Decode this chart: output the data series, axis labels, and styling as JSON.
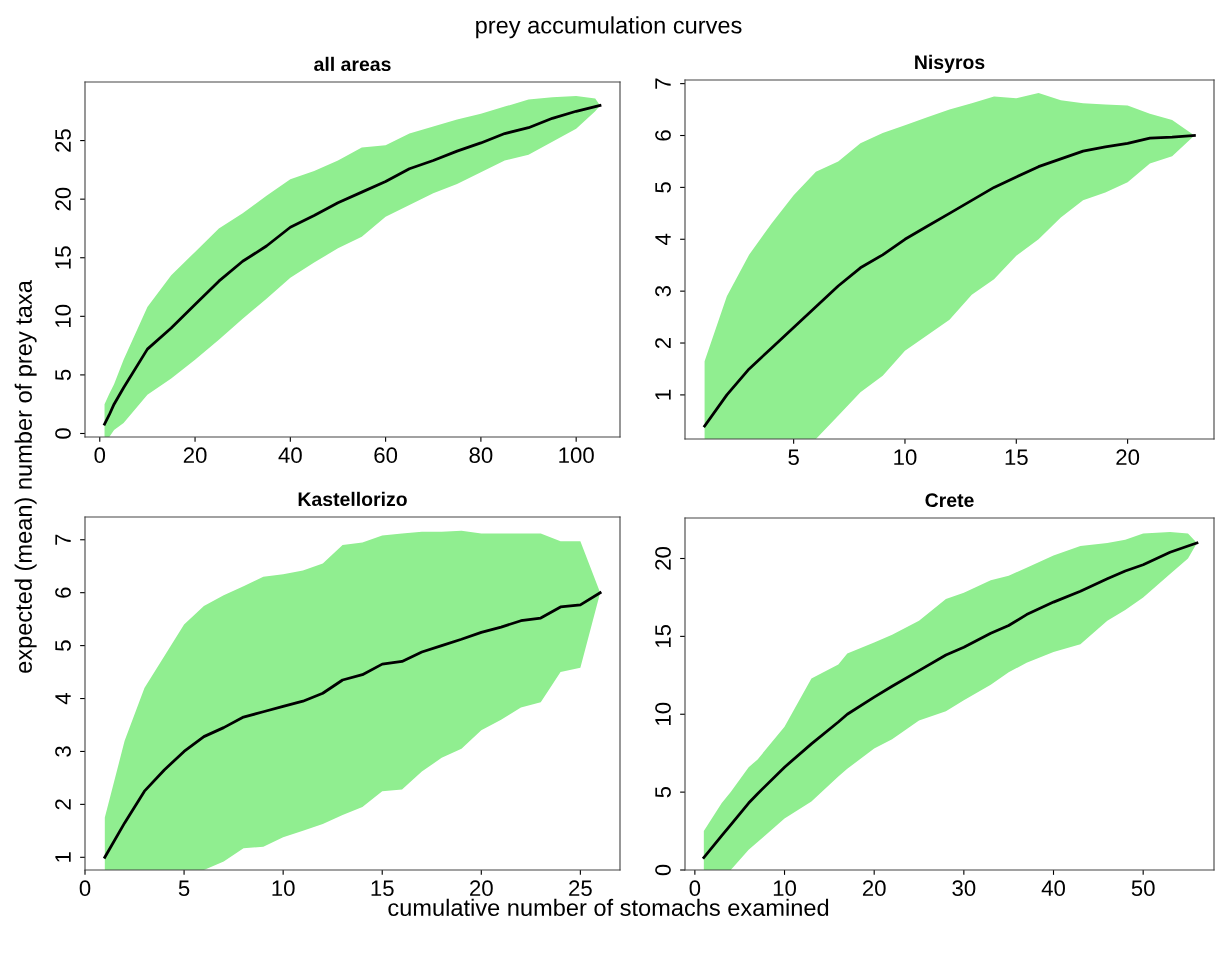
{
  "chart_data": [
    {
      "type": "line",
      "title": "all areas",
      "annotations": [
        "prey accumulation curves"
      ],
      "xlabel": "cumulative number of stomachs examined",
      "ylabel": "expected (mean) number of prey taxa",
      "xlim": [
        -3.1,
        109.2
      ],
      "ylim": [
        -0.3,
        30.0
      ],
      "xticks": [
        0,
        20,
        40,
        60,
        80,
        100
      ],
      "yticks": [
        0,
        5,
        10,
        15,
        20,
        25
      ],
      "grid": false,
      "legend": false,
      "series": [
        {
          "color": "#000000",
          "x": [
            1,
            2,
            3,
            5,
            10,
            15,
            20,
            25,
            30,
            35,
            40,
            45,
            50,
            55,
            60,
            65,
            70,
            75,
            80,
            85,
            90,
            95,
            100,
            104,
            105
          ],
          "values": [
            0.8,
            1.6,
            2.5,
            3.9,
            7.2,
            9.0,
            11.0,
            13.0,
            14.7,
            16.0,
            17.6,
            18.6,
            19.7,
            20.6,
            21.5,
            22.6,
            23.3,
            24.1,
            24.8,
            25.6,
            26.1,
            26.9,
            27.5,
            27.9,
            28.0
          ],
          "upper": [
            2.5,
            3.4,
            4.2,
            6.3,
            10.8,
            13.5,
            15.5,
            17.5,
            18.8,
            20.3,
            21.7,
            22.4,
            23.3,
            24.4,
            24.6,
            25.6,
            26.2,
            26.8,
            27.3,
            27.9,
            28.5,
            28.7,
            28.8,
            28.6,
            28.0
          ],
          "lower": [
            -0.3,
            -0.3,
            0.3,
            0.9,
            3.3,
            4.7,
            6.3,
            8.0,
            9.8,
            11.5,
            13.3,
            14.6,
            15.8,
            16.8,
            18.5,
            19.5,
            20.5,
            21.3,
            22.3,
            23.3,
            23.8,
            24.9,
            26.0,
            27.5,
            28.0
          ]
        }
      ]
    },
    {
      "type": "line",
      "title": "Nisyros",
      "xlim": [
        0.12,
        23.88
      ],
      "ylim": [
        0.15,
        7.07
      ],
      "xticks": [
        5,
        10,
        15,
        20
      ],
      "yticks": [
        1,
        2,
        3,
        4,
        5,
        6,
        7
      ],
      "grid": false,
      "legend": false,
      "series": [
        {
          "color": "#000000",
          "x": [
            1,
            2,
            3,
            4,
            5,
            6,
            7,
            8,
            9,
            10,
            11,
            12,
            13,
            14,
            15,
            16,
            17,
            18,
            19,
            20,
            21,
            22,
            23
          ],
          "values": [
            0.4,
            1.0,
            1.5,
            1.9,
            2.3,
            2.7,
            3.1,
            3.45,
            3.7,
            4.0,
            4.25,
            4.5,
            4.75,
            5.0,
            5.2,
            5.4,
            5.55,
            5.7,
            5.78,
            5.85,
            5.95,
            5.97,
            6.0
          ],
          "upper": [
            1.65,
            2.9,
            3.7,
            4.3,
            4.85,
            5.3,
            5.5,
            5.85,
            6.05,
            6.2,
            6.35,
            6.5,
            6.62,
            6.75,
            6.72,
            6.82,
            6.68,
            6.62,
            6.6,
            6.58,
            6.42,
            6.3,
            6.0
          ],
          "lower": [
            0.15,
            0.15,
            0.15,
            0.15,
            0.15,
            0.15,
            0.6,
            1.05,
            1.37,
            1.85,
            2.15,
            2.45,
            2.93,
            3.23,
            3.68,
            4.0,
            4.42,
            4.75,
            4.9,
            5.1,
            5.46,
            5.6,
            6.0
          ]
        }
      ]
    },
    {
      "type": "line",
      "title": "Kastellorizo",
      "xlim": [
        0,
        27
      ],
      "ylim": [
        0.76,
        7.43
      ],
      "xticks": [
        0,
        5,
        10,
        15,
        20,
        25
      ],
      "yticks": [
        1,
        2,
        3,
        4,
        5,
        6,
        7
      ],
      "grid": false,
      "legend": false,
      "series": [
        {
          "color": "#000000",
          "x": [
            1,
            2,
            3,
            4,
            5,
            6,
            7,
            8,
            9,
            10,
            11,
            12,
            13,
            14,
            15,
            16,
            17,
            18,
            19,
            20,
            21,
            22,
            23,
            24,
            25,
            26
          ],
          "values": [
            1.0,
            1.65,
            2.25,
            2.65,
            3.0,
            3.28,
            3.45,
            3.65,
            3.75,
            3.85,
            3.95,
            4.1,
            4.35,
            4.45,
            4.65,
            4.7,
            4.88,
            5.0,
            5.12,
            5.25,
            5.35,
            5.47,
            5.52,
            5.73,
            5.77,
            6.0
          ],
          "upper": [
            1.75,
            3.2,
            4.2,
            4.8,
            5.4,
            5.75,
            5.95,
            6.12,
            6.3,
            6.35,
            6.42,
            6.55,
            6.9,
            6.95,
            7.08,
            7.12,
            7.15,
            7.15,
            7.17,
            7.12,
            7.12,
            7.12,
            7.12,
            6.97,
            6.97,
            6.0
          ],
          "lower": [
            0.76,
            0.76,
            0.76,
            0.76,
            0.76,
            0.76,
            0.92,
            1.17,
            1.2,
            1.38,
            1.5,
            1.63,
            1.8,
            1.95,
            2.25,
            2.28,
            2.62,
            2.88,
            3.05,
            3.4,
            3.6,
            3.83,
            3.93,
            4.5,
            4.58,
            6.0
          ]
        }
      ]
    },
    {
      "type": "line",
      "title": "Crete",
      "xlim": [
        -1.1,
        57.9
      ],
      "ylim": [
        0,
        22.6
      ],
      "xticks": [
        0,
        10,
        20,
        30,
        40,
        50
      ],
      "yticks": [
        0,
        5,
        10,
        15,
        20
      ],
      "grid": false,
      "legend": false,
      "series": [
        {
          "color": "#000000",
          "x": [
            1,
            3,
            4,
            6,
            7,
            10,
            13,
            16,
            17,
            20,
            22,
            25,
            28,
            30,
            33,
            35,
            37,
            40,
            43,
            46,
            48,
            50,
            53,
            55,
            56
          ],
          "values": [
            0.8,
            2.2,
            2.9,
            4.3,
            4.9,
            6.6,
            8.1,
            9.5,
            10.0,
            11.1,
            11.8,
            12.8,
            13.8,
            14.3,
            15.2,
            15.7,
            16.4,
            17.2,
            17.9,
            18.7,
            19.2,
            19.6,
            20.4,
            20.8,
            21.0
          ],
          "upper": [
            2.5,
            4.3,
            5.0,
            6.6,
            7.1,
            9.2,
            12.3,
            13.2,
            13.9,
            14.6,
            15.1,
            16.0,
            17.4,
            17.8,
            18.6,
            18.9,
            19.4,
            20.2,
            20.8,
            21.0,
            21.2,
            21.6,
            21.7,
            21.6,
            21.0
          ],
          "lower": [
            0,
            0,
            0,
            1.3,
            1.8,
            3.3,
            4.4,
            6.0,
            6.5,
            7.8,
            8.4,
            9.6,
            10.2,
            10.9,
            11.9,
            12.7,
            13.3,
            14.0,
            14.5,
            16.0,
            16.7,
            17.5,
            19.0,
            20.0,
            21.0
          ]
        }
      ]
    }
  ]
}
